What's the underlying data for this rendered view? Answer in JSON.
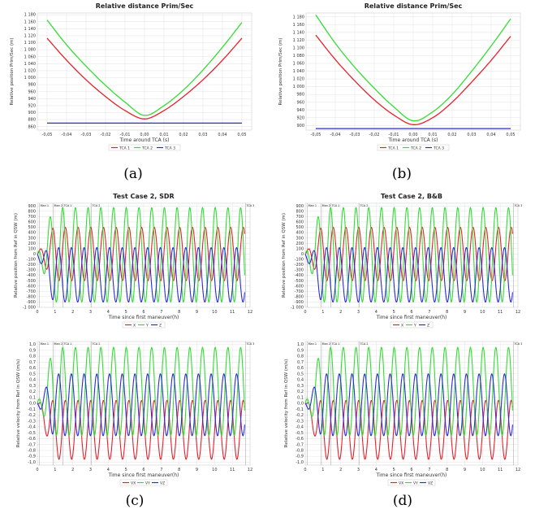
{
  "captions": [
    "(a)",
    "(b)",
    "(c)",
    "(d)"
  ],
  "colors": {
    "red": "#e8202a",
    "green": "#33dd33",
    "blue": "#2b2bd9",
    "grid": "#dcdcdc",
    "frame": "#d0d0d0"
  },
  "chart_data": [
    {
      "id": "a",
      "type": "line",
      "title": "Relative distance Prim/Sec",
      "xlabel": "Time around TCA (s)",
      "ylabel": "Relative position Prim/Sec (m)",
      "xlim": [
        -0.055,
        0.055
      ],
      "ylim": [
        850,
        1185
      ],
      "xticks": [
        -0.05,
        -0.04,
        -0.03,
        -0.02,
        -0.01,
        0,
        0.01,
        0.02,
        0.03,
        0.04,
        0.05
      ],
      "xtick_labels": [
        "-0,05",
        "-0,04",
        "-0,03",
        "-0,02",
        "-0,01",
        "0,00",
        "0,01",
        "0,02",
        "0,03",
        "0,04",
        "0,05"
      ],
      "yticks": [
        860,
        880,
        900,
        920,
        940,
        960,
        980,
        1000,
        1020,
        1040,
        1060,
        1080,
        1100,
        1120,
        1140,
        1160,
        1180
      ],
      "ytick_labels": [
        "860",
        "880",
        "900",
        "920",
        "940",
        "960",
        "980",
        "1 000",
        "1 020",
        "1 040",
        "1 060",
        "1 080",
        "1 100",
        "1 120",
        "1 140",
        "1 160",
        "1 180"
      ],
      "grid": true,
      "legend_position": "bottom",
      "series": [
        {
          "name": "TCA 1",
          "color": "red",
          "x": [
            -0.05,
            -0.04,
            -0.03,
            -0.02,
            -0.01,
            0,
            0.01,
            0.02,
            0.03,
            0.04,
            0.05
          ],
          "y": [
            1113,
            1050,
            994,
            946,
            906,
            882,
            906,
            946,
            994,
            1050,
            1113
          ]
        },
        {
          "name": "TCA 2",
          "color": "green",
          "x": [
            -0.05,
            -0.04,
            -0.03,
            -0.02,
            -0.01,
            0,
            0.01,
            0.02,
            0.03,
            0.04,
            0.05
          ],
          "y": [
            1165,
            1094,
            1033,
            978,
            930,
            892,
            920,
            965,
            1022,
            1087,
            1158
          ]
        },
        {
          "name": "TCA 3",
          "color": "blue",
          "x": [
            -0.05,
            0.05
          ],
          "y": [
            870,
            870
          ]
        }
      ]
    },
    {
      "id": "b",
      "type": "line",
      "title": "Relative distance Prim/Sec",
      "xlabel": "Time around TCA (s)",
      "ylabel": "Relative position Prim/Sec (m)",
      "xlim": [
        -0.055,
        0.055
      ],
      "ylim": [
        888,
        1190
      ],
      "xticks": [
        -0.05,
        -0.04,
        -0.03,
        -0.02,
        -0.01,
        0,
        0.01,
        0.02,
        0.03,
        0.04,
        0.05
      ],
      "xtick_labels": [
        "-0,05",
        "-0,04",
        "-0,03",
        "-0,02",
        "-0,01",
        "0,00",
        "0,01",
        "0,02",
        "0,03",
        "0,04",
        "0,05"
      ],
      "yticks": [
        900,
        920,
        940,
        960,
        980,
        1000,
        1020,
        1040,
        1060,
        1080,
        1100,
        1120,
        1140,
        1160,
        1180
      ],
      "ytick_labels": [
        "900",
        "920",
        "940",
        "960",
        "980",
        "1 000",
        "1 020",
        "1 040",
        "1 060",
        "1 080",
        "1 100",
        "1 120",
        "1 140",
        "1 160",
        "1 180"
      ],
      "grid": true,
      "legend_position": "bottom",
      "series": [
        {
          "name": "TCA 1",
          "color": "red",
          "x": [
            -0.05,
            -0.04,
            -0.03,
            -0.02,
            -0.01,
            0,
            0.01,
            0.02,
            0.03,
            0.04,
            0.05
          ],
          "y": [
            1133,
            1070,
            1015,
            966,
            927,
            902,
            920,
            960,
            1012,
            1068,
            1130
          ]
        },
        {
          "name": "TCA 2",
          "color": "green",
          "x": [
            -0.05,
            -0.04,
            -0.03,
            -0.02,
            -0.01,
            0,
            0.01,
            0.02,
            0.03,
            0.04,
            0.05
          ],
          "y": [
            1185,
            1112,
            1050,
            996,
            948,
            912,
            935,
            980,
            1040,
            1105,
            1175
          ]
        },
        {
          "name": "TCA 3",
          "color": "blue",
          "x": [
            -0.05,
            0.05
          ],
          "y": [
            892,
            892
          ]
        }
      ]
    },
    {
      "id": "c-top",
      "type": "line",
      "title": "Test Case 2, SDR",
      "xlabel": "Time since first maneuver(h)",
      "ylabel": "Relative position from Ref in QSW (m)",
      "xlim": [
        0,
        12
      ],
      "ylim": [
        -1000,
        950
      ],
      "xticks": [
        0,
        1,
        2,
        3,
        4,
        5,
        6,
        7,
        8,
        9,
        10,
        11,
        12
      ],
      "xtick_labels": [
        "0",
        "1",
        "2",
        "3",
        "4",
        "5",
        "6",
        "7",
        "8",
        "9",
        "10",
        "11",
        "12"
      ],
      "yticks": [
        -1000,
        -900,
        -800,
        -700,
        -600,
        -500,
        -400,
        -300,
        -200,
        -100,
        0,
        100,
        200,
        300,
        400,
        500,
        600,
        700,
        800,
        900
      ],
      "ytick_labels": [
        "-1 000",
        "-900",
        "-800",
        "-700",
        "-600",
        "-500",
        "-400",
        "-300",
        "-200",
        "-100",
        "0",
        "100",
        "200",
        "300",
        "400",
        "500",
        "600",
        "700",
        "800",
        "900"
      ],
      "markers": [
        {
          "label": "Man 1",
          "x": 0.12
        },
        {
          "label": "Man 2",
          "x": 0.9
        },
        {
          "label": "TCA 1",
          "x": 1.45
        },
        {
          "label": "TCA 2",
          "x": 3.05
        },
        {
          "label": "TCA 3",
          "x": 11.75
        }
      ],
      "grid": true,
      "legend_position": "bottom",
      "series": [
        {
          "name": "X",
          "color": "red",
          "x": [
            0,
            12
          ],
          "y": [
            -500,
            500
          ]
        },
        {
          "name": "Y",
          "color": "green",
          "x": [
            0,
            12
          ],
          "y": [
            -900,
            870
          ]
        },
        {
          "name": "Z",
          "color": "blue",
          "x": [
            0,
            12
          ],
          "y": [
            -900,
            120
          ]
        }
      ]
    },
    {
      "id": "c-bottom",
      "type": "line",
      "xlabel": "Time since first maneuver(h)",
      "ylabel": "Relative velocity from Ref in QSW (m/s)",
      "xlim": [
        0,
        12
      ],
      "ylim": [
        -1.05,
        1.05
      ],
      "xticks": [
        0,
        1,
        2,
        3,
        4,
        5,
        6,
        7,
        8,
        9,
        10,
        11,
        12
      ],
      "xtick_labels": [
        "0",
        "1",
        "2",
        "3",
        "4",
        "5",
        "6",
        "7",
        "8",
        "9",
        "10",
        "11",
        "12"
      ],
      "yticks": [
        -1.0,
        -0.9,
        -0.8,
        -0.7,
        -0.6,
        -0.5,
        -0.4,
        -0.3,
        -0.2,
        -0.1,
        0,
        0.1,
        0.2,
        0.3,
        0.4,
        0.5,
        0.6,
        0.7,
        0.8,
        0.9,
        1.0
      ],
      "ytick_labels": [
        "-1,0",
        "-0,9",
        "-0,8",
        "-0,7",
        "-0,6",
        "-0,5",
        "-0,4",
        "-0,3",
        "-0,2",
        "-0,1",
        "0,0",
        "0,1",
        "0,2",
        "0,3",
        "0,4",
        "0,5",
        "0,6",
        "0,7",
        "0,8",
        "0,9",
        "1,0"
      ],
      "markers": [
        {
          "label": "Man 1",
          "x": 0.12
        },
        {
          "label": "Man 2",
          "x": 0.9
        },
        {
          "label": "TCA 1",
          "x": 1.45
        },
        {
          "label": "TCA 2",
          "x": 3.05
        },
        {
          "label": "TCA 3",
          "x": 11.75
        }
      ],
      "grid": true,
      "legend_position": "bottom",
      "series": [
        {
          "name": "VX",
          "color": "red",
          "x": [
            0,
            12
          ],
          "y": [
            -0.95,
            0.05
          ]
        },
        {
          "name": "VY",
          "color": "green",
          "x": [
            0,
            12
          ],
          "y": [
            -0.55,
            0.95
          ]
        },
        {
          "name": "VZ",
          "color": "blue",
          "x": [
            0,
            12
          ],
          "y": [
            -0.55,
            0.5
          ]
        }
      ]
    },
    {
      "id": "d-top",
      "type": "line",
      "title": "Test Case 2, B&B",
      "xlabel": "Time since first maneuver(h)",
      "ylabel": "Relative position from Ref in QSW (m)",
      "xlim": [
        0,
        12
      ],
      "ylim": [
        -1000,
        950
      ],
      "xticks": [
        0,
        1,
        2,
        3,
        4,
        5,
        6,
        7,
        8,
        9,
        10,
        11,
        12
      ],
      "xtick_labels": [
        "0",
        "1",
        "2",
        "3",
        "4",
        "5",
        "6",
        "7",
        "8",
        "9",
        "10",
        "11",
        "12"
      ],
      "yticks": [
        -1000,
        -900,
        -800,
        -700,
        -600,
        -500,
        -400,
        -300,
        -200,
        -100,
        0,
        100,
        200,
        300,
        400,
        500,
        600,
        700,
        800,
        900
      ],
      "ytick_labels": [
        "-1 000",
        "-900",
        "-800",
        "-700",
        "-600",
        "-500",
        "-400",
        "-300",
        "-200",
        "-100",
        "0",
        "100",
        "200",
        "300",
        "400",
        "500",
        "600",
        "700",
        "800",
        "900"
      ],
      "markers": [
        {
          "label": "Man 1",
          "x": 0.12
        },
        {
          "label": "Man 2",
          "x": 0.9
        },
        {
          "label": "TCA 1",
          "x": 1.45
        },
        {
          "label": "TCA 2",
          "x": 3.05
        },
        {
          "label": "TCA 3",
          "x": 11.75
        }
      ],
      "grid": true,
      "legend_position": "bottom",
      "series": [
        {
          "name": "X",
          "color": "red",
          "x": [
            0,
            12
          ],
          "y": [
            -500,
            500
          ]
        },
        {
          "name": "Y",
          "color": "green",
          "x": [
            0,
            12
          ],
          "y": [
            -900,
            870
          ]
        },
        {
          "name": "Z",
          "color": "blue",
          "x": [
            0,
            12
          ],
          "y": [
            -900,
            120
          ]
        }
      ]
    },
    {
      "id": "d-bottom",
      "type": "line",
      "xlabel": "Time since first maneuver(h)",
      "ylabel": "Relative velocity from Ref in QSW (m/s)",
      "xlim": [
        0,
        12
      ],
      "ylim": [
        -1.05,
        1.05
      ],
      "xticks": [
        0,
        1,
        2,
        3,
        4,
        5,
        6,
        7,
        8,
        9,
        10,
        11,
        12
      ],
      "xtick_labels": [
        "0",
        "1",
        "2",
        "3",
        "4",
        "5",
        "6",
        "7",
        "8",
        "9",
        "10",
        "11",
        "12"
      ],
      "yticks": [
        -1.0,
        -0.9,
        -0.8,
        -0.7,
        -0.6,
        -0.5,
        -0.4,
        -0.3,
        -0.2,
        -0.1,
        0,
        0.1,
        0.2,
        0.3,
        0.4,
        0.5,
        0.6,
        0.7,
        0.8,
        0.9,
        1.0
      ],
      "ytick_labels": [
        "-1,0",
        "-0,9",
        "-0,8",
        "-0,7",
        "-0,6",
        "-0,5",
        "-0,4",
        "-0,3",
        "-0,2",
        "-0,1",
        "0,0",
        "0,1",
        "0,2",
        "0,3",
        "0,4",
        "0,5",
        "0,6",
        "0,7",
        "0,8",
        "0,9",
        "1,0"
      ],
      "markers": [
        {
          "label": "Man 1",
          "x": 0.12
        },
        {
          "label": "Man 2",
          "x": 0.9
        },
        {
          "label": "TCA 1",
          "x": 1.45
        },
        {
          "label": "TCA 2",
          "x": 3.05
        },
        {
          "label": "TCA 3",
          "x": 11.75
        }
      ],
      "grid": true,
      "legend_position": "bottom",
      "series": [
        {
          "name": "VX",
          "color": "red",
          "x": [
            0,
            12
          ],
          "y": [
            -0.95,
            0.05
          ]
        },
        {
          "name": "VY",
          "color": "green",
          "x": [
            0,
            12
          ],
          "y": [
            -0.55,
            0.95
          ]
        },
        {
          "name": "VZ",
          "color": "blue",
          "x": [
            0,
            12
          ],
          "y": [
            -0.55,
            0.5
          ]
        }
      ]
    }
  ]
}
